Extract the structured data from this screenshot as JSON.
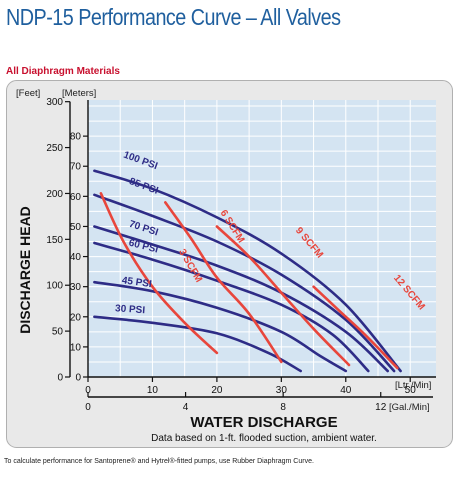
{
  "header": {
    "title": "NDP-15 Performance Curve – All Valves",
    "subtitle": "All Diaphragm Materials"
  },
  "footnote": "To calculate performance for Santoprene® and Hytrel®-fitted pumps, use Rubber Diaphragm Curve.",
  "colors": {
    "psi_curve": "#2e2c86",
    "scfm_curve": "#e8463c",
    "plot_bg": "#d4e4f2",
    "frame_bg": "#e9e9e9",
    "grid": "#ffffff",
    "title": "#1f5f9e",
    "subtitle": "#c8102e"
  },
  "chart_data": {
    "type": "line",
    "xlabel": "WATER DISCHARGE",
    "ylabel": "DISCHARGE HEAD",
    "note": "Data based on 1-ft. flooded suction, ambient water.",
    "x_unit_primary": "[Ltr./Min]",
    "x_unit_secondary": "[Gal./Min]",
    "y_unit_primary": "[Feet]",
    "y_unit_secondary": "[Meters]",
    "xlim": [
      0,
      54
    ],
    "ylim": [
      0,
      92
    ],
    "grid": true,
    "x_ticks": [
      0,
      10,
      20,
      30,
      40,
      50
    ],
    "gal_ticks": [
      0,
      4,
      8,
      12
    ],
    "feet_ticks": [
      0,
      50,
      100,
      150,
      200,
      250,
      300
    ],
    "meter_ticks": [
      0,
      10,
      20,
      30,
      40,
      50,
      60,
      70,
      80
    ],
    "psi_series": [
      {
        "name": "100 PSI",
        "points": [
          [
            1,
            68.5
          ],
          [
            10,
            62.5
          ],
          [
            20,
            53
          ],
          [
            30,
            41
          ],
          [
            40,
            24
          ],
          [
            48.5,
            2
          ]
        ]
      },
      {
        "name": "85 PSI",
        "points": [
          [
            1,
            60.5
          ],
          [
            10,
            53.5
          ],
          [
            20,
            45
          ],
          [
            30,
            34
          ],
          [
            40,
            19
          ],
          [
            47.5,
            2
          ]
        ]
      },
      {
        "name": "70 PSI",
        "points": [
          [
            1,
            50
          ],
          [
            10,
            44
          ],
          [
            20,
            37
          ],
          [
            30,
            28
          ],
          [
            40,
            15
          ],
          [
            46.5,
            2
          ]
        ]
      },
      {
        "name": "60 PSI",
        "points": [
          [
            1,
            44.5
          ],
          [
            10,
            39
          ],
          [
            20,
            32
          ],
          [
            30,
            24
          ],
          [
            38,
            14
          ],
          [
            43.5,
            2
          ]
        ]
      },
      {
        "name": "45 PSI",
        "points": [
          [
            1,
            31.5
          ],
          [
            10,
            28.5
          ],
          [
            20,
            23
          ],
          [
            30,
            15
          ],
          [
            36,
            7
          ],
          [
            40,
            2
          ]
        ]
      },
      {
        "name": "30 PSI",
        "points": [
          [
            1,
            20
          ],
          [
            10,
            18
          ],
          [
            20,
            14.5
          ],
          [
            28,
            8
          ],
          [
            33,
            2
          ]
        ]
      }
    ],
    "scfm_series": [
      {
        "name": "3 SCFM",
        "points": [
          [
            2,
            61
          ],
          [
            5.5,
            45
          ],
          [
            10,
            30
          ],
          [
            15,
            18
          ],
          [
            20,
            8
          ]
        ]
      },
      {
        "name": "6 SCFM",
        "points": [
          [
            12,
            58
          ],
          [
            16,
            46
          ],
          [
            20,
            33
          ],
          [
            25,
            21
          ],
          [
            30,
            5
          ]
        ]
      },
      {
        "name": "9 SCFM",
        "points": [
          [
            20,
            50
          ],
          [
            25,
            40
          ],
          [
            30,
            28
          ],
          [
            35,
            16
          ],
          [
            40.5,
            4
          ]
        ]
      },
      {
        "name": "12 SCFM",
        "points": [
          [
            35,
            30
          ],
          [
            39,
            22
          ],
          [
            43,
            14
          ],
          [
            48,
            3
          ]
        ]
      }
    ],
    "labels": [
      {
        "text": "100 PSI",
        "x": 8,
        "y": 71,
        "angle": 20,
        "color": "psi"
      },
      {
        "text": "85 PSI",
        "x": 8.5,
        "y": 62.5,
        "angle": 20,
        "color": "psi"
      },
      {
        "text": "70 PSI",
        "x": 8.5,
        "y": 48.5,
        "angle": 18,
        "color": "psi"
      },
      {
        "text": "60 PSI",
        "x": 8.5,
        "y": 42.5,
        "angle": 14,
        "color": "psi"
      },
      {
        "text": "45 PSI",
        "x": 7.5,
        "y": 30.5,
        "angle": 8,
        "color": "psi"
      },
      {
        "text": "30 PSI",
        "x": 6.5,
        "y": 21.5,
        "angle": 4,
        "color": "psi"
      },
      {
        "text": "3 SCFM",
        "x": 15.5,
        "y": 36.5,
        "angle": 60,
        "color": "scfm"
      },
      {
        "text": "6 SCFM",
        "x": 22,
        "y": 49.5,
        "angle": 58,
        "color": "scfm"
      },
      {
        "text": "9 SCFM",
        "x": 34,
        "y": 44,
        "angle": 50,
        "color": "scfm"
      },
      {
        "text": "12 SCFM",
        "x": 49.5,
        "y": 27.5,
        "angle": 50,
        "color": "scfm"
      }
    ]
  }
}
